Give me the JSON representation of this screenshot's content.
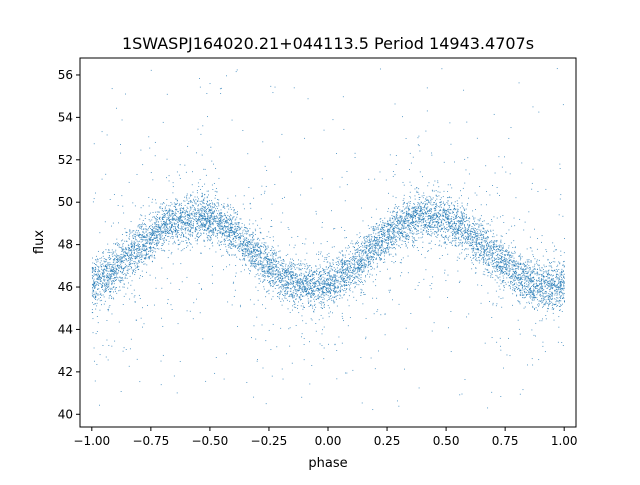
{
  "chart_data": {
    "type": "scatter",
    "title": "1SWASPJ164020.21+044113.5 Period 14943.4707s",
    "xlabel": "phase",
    "ylabel": "flux",
    "xlim": [
      -1.05,
      1.05
    ],
    "ylim": [
      39.4,
      56.8
    ],
    "xticks": [
      -1.0,
      -0.75,
      -0.5,
      -0.25,
      0.0,
      0.25,
      0.5,
      0.75,
      1.0
    ],
    "xtick_labels": [
      "−1.00",
      "−0.75",
      "−0.50",
      "−0.25",
      "0.00",
      "0.25",
      "0.50",
      "0.75",
      "1.00"
    ],
    "yticks": [
      40,
      42,
      44,
      46,
      48,
      50,
      52,
      54,
      56
    ],
    "ytick_labels": [
      "40",
      "42",
      "44",
      "46",
      "48",
      "50",
      "52",
      "54",
      "56"
    ],
    "grid": false,
    "marker_color": "#1f77b4",
    "series": [
      {
        "points_summary": "folded light curve: flux ≈ 47.7 + 1.65·cos(2π(phase − 0.43)), min ≈ 46.0 near phase −1, 0, 1; max ≈ 49.3 near phase ±0.5",
        "x": [
          -1.0,
          -0.95,
          -0.9,
          -0.85,
          -0.8,
          -0.75,
          -0.7,
          -0.65,
          -0.6,
          -0.55,
          -0.5,
          -0.45,
          -0.4,
          -0.35,
          -0.3,
          -0.25,
          -0.2,
          -0.15,
          -0.1,
          -0.05,
          0.0,
          0.05,
          0.1,
          0.15,
          0.2,
          0.25,
          0.3,
          0.35,
          0.4,
          0.45,
          0.5,
          0.55,
          0.6,
          0.65,
          0.7,
          0.75,
          0.8,
          0.85,
          0.9,
          0.95,
          1.0
        ],
        "y": [
          46.2,
          46.6,
          47.1,
          47.7,
          48.2,
          48.6,
          48.9,
          49.1,
          49.3,
          49.3,
          49.2,
          49.0,
          48.6,
          48.1,
          47.6,
          47.1,
          46.6,
          46.2,
          46.0,
          46.0,
          46.1,
          46.4,
          46.9,
          47.4,
          47.9,
          48.3,
          48.7,
          49.0,
          49.2,
          49.3,
          49.3,
          49.1,
          48.8,
          48.4,
          47.9,
          47.4,
          46.9,
          46.4,
          46.1,
          46.0,
          46.1
        ]
      }
    ]
  }
}
